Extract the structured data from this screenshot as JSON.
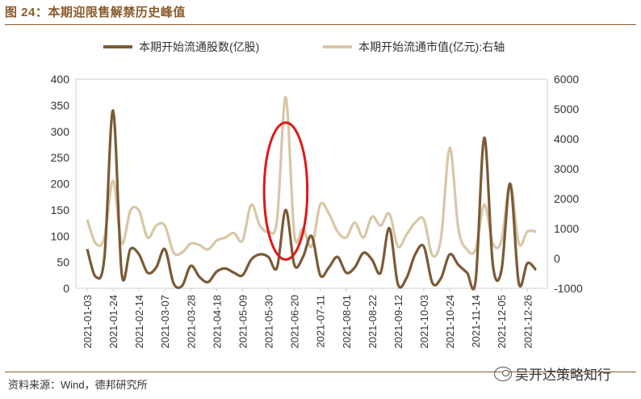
{
  "header": {
    "title": "图 24：本期迎限售解禁历史峰值"
  },
  "footer": {
    "source": "资料来源：Wind，德邦研究所",
    "watermark": "吴开达策略知行"
  },
  "colors": {
    "shares_series": "#7b5a36",
    "value_series": "#d8c7a6",
    "highlight": "#e01818",
    "frame": "#cfcfcf",
    "rule": "#8a5a2b"
  },
  "chart_data": {
    "type": "line",
    "title": "",
    "xlabel": "",
    "ylabel": "",
    "ylim": [
      0,
      400
    ],
    "y2lim": [
      -1000,
      6000
    ],
    "yticks": [
      "0",
      "50",
      "100",
      "150",
      "200",
      "250",
      "300",
      "350",
      "400"
    ],
    "y2ticks": [
      "-1000",
      "0",
      "1000",
      "2000",
      "3000",
      "4000",
      "5000",
      "6000"
    ],
    "x_tick_labels": [
      "2021-01-03",
      "2021-01-24",
      "2021-02-14",
      "2021-03-07",
      "2021-03-28",
      "2021-04-18",
      "2021-05-09",
      "2021-05-30",
      "2021-06-20",
      "2021-07-11",
      "2021-08-01",
      "2021-08-22",
      "2021-09-12",
      "2021-10-03",
      "2021-10-24",
      "2021-11-14",
      "2021-12-05",
      "2021-12-26"
    ],
    "x": [
      "2021-01-03",
      "2021-01-10",
      "2021-01-17",
      "2021-01-24",
      "2021-01-31",
      "2021-02-07",
      "2021-02-14",
      "2021-02-21",
      "2021-02-28",
      "2021-03-07",
      "2021-03-14",
      "2021-03-21",
      "2021-03-28",
      "2021-04-04",
      "2021-04-11",
      "2021-04-18",
      "2021-04-25",
      "2021-05-02",
      "2021-05-09",
      "2021-05-16",
      "2021-05-23",
      "2021-05-30",
      "2021-06-06",
      "2021-06-13",
      "2021-06-20",
      "2021-06-27",
      "2021-07-04",
      "2021-07-11",
      "2021-07-18",
      "2021-07-25",
      "2021-08-01",
      "2021-08-08",
      "2021-08-15",
      "2021-08-22",
      "2021-08-29",
      "2021-09-05",
      "2021-09-12",
      "2021-09-19",
      "2021-09-26",
      "2021-10-03",
      "2021-10-10",
      "2021-10-17",
      "2021-10-24",
      "2021-10-31",
      "2021-11-07",
      "2021-11-14",
      "2021-11-21",
      "2021-11-28",
      "2021-12-05",
      "2021-12-12",
      "2021-12-19",
      "2021-12-26",
      "2022-01-02"
    ],
    "series": [
      {
        "name": "本期开始流通股数(亿股)",
        "axis": "left",
        "values": [
          75,
          22,
          60,
          340,
          28,
          75,
          65,
          30,
          40,
          75,
          10,
          5,
          43,
          22,
          12,
          32,
          38,
          30,
          25,
          55,
          65,
          60,
          40,
          150,
          45,
          60,
          100,
          25,
          40,
          60,
          30,
          40,
          68,
          55,
          30,
          115,
          8,
          20,
          65,
          80,
          10,
          20,
          65,
          45,
          30,
          15,
          288,
          45,
          35,
          200,
          10,
          48,
          35
        ]
      },
      {
        "name": "本期开始流通市值(亿元):右轴",
        "axis": "right",
        "values": [
          1300,
          500,
          700,
          2600,
          500,
          1600,
          1600,
          700,
          1100,
          1100,
          200,
          200,
          500,
          450,
          300,
          600,
          700,
          850,
          600,
          1800,
          1100,
          900,
          1300,
          5400,
          800,
          1000,
          400,
          1800,
          1500,
          900,
          700,
          1200,
          700,
          1400,
          1100,
          1500,
          400,
          800,
          1200,
          1300,
          100,
          700,
          3700,
          1000,
          300,
          300,
          1800,
          500,
          600,
          2500,
          500,
          900,
          900
        ]
      }
    ],
    "annotations": [
      {
        "type": "ellipse",
        "x": "2021-06-13",
        "y_center": 186,
        "y_half_height": 131,
        "x_half_width_weeks": 2.5
      }
    ],
    "grid": false,
    "legend": "top-center"
  }
}
